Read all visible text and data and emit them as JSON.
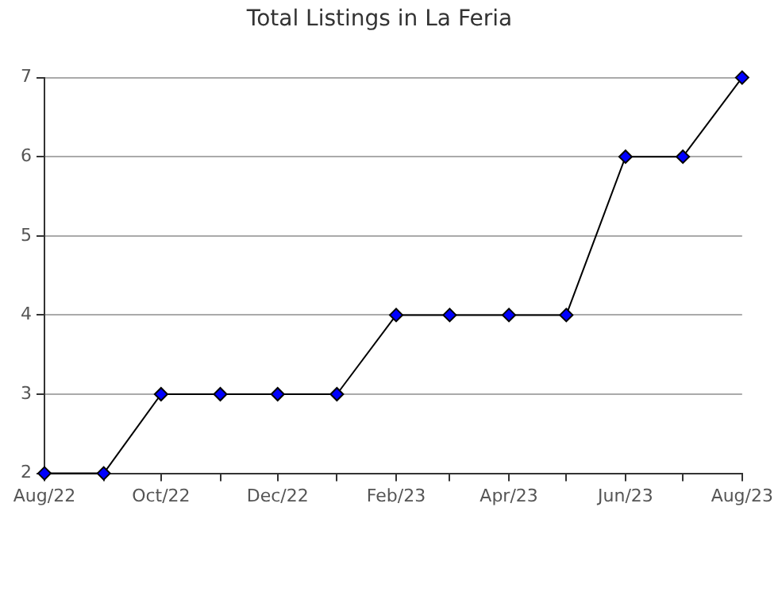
{
  "chart_data": {
    "type": "line",
    "title": "Total Listings in La Feria",
    "x": [
      "2022-08",
      "2022-09",
      "2022-10",
      "2022-11",
      "2022-12",
      "2023-01",
      "2023-02",
      "2023-03",
      "2023-04",
      "2023-05",
      "2023-06",
      "2023-07",
      "2023-08"
    ],
    "series": [
      {
        "color": "#0000ff",
        "values": [
          2,
          2,
          3,
          3,
          3,
          3,
          4,
          4,
          4,
          4,
          6,
          6,
          7
        ]
      }
    ],
    "xlim": [
      "2022-08",
      "2023-08"
    ],
    "xticks": [
      {
        "value": "2022-08",
        "label": "Aug/22"
      },
      {
        "value": "2022-09",
        "label": null
      },
      {
        "value": "2022-10",
        "label": "Oct/22"
      },
      {
        "value": "2022-11",
        "label": null
      },
      {
        "value": "2022-12",
        "label": "Dec/22"
      },
      {
        "value": "2023-01",
        "label": null
      },
      {
        "value": "2023-02",
        "label": "Feb/23"
      },
      {
        "value": "2023-03",
        "label": null
      },
      {
        "value": "2023-04",
        "label": "Apr/23"
      },
      {
        "value": "2023-05",
        "label": null
      },
      {
        "value": "2023-06",
        "label": "Jun/23"
      },
      {
        "value": "2023-07",
        "label": null
      },
      {
        "value": "2023-08",
        "label": "Aug/23"
      }
    ],
    "ylim": [
      2,
      7
    ],
    "yticks": [
      2,
      3,
      4,
      5,
      6,
      7
    ],
    "grid": "y",
    "marker": "diamond",
    "line_style": "solid",
    "legend": false
  }
}
